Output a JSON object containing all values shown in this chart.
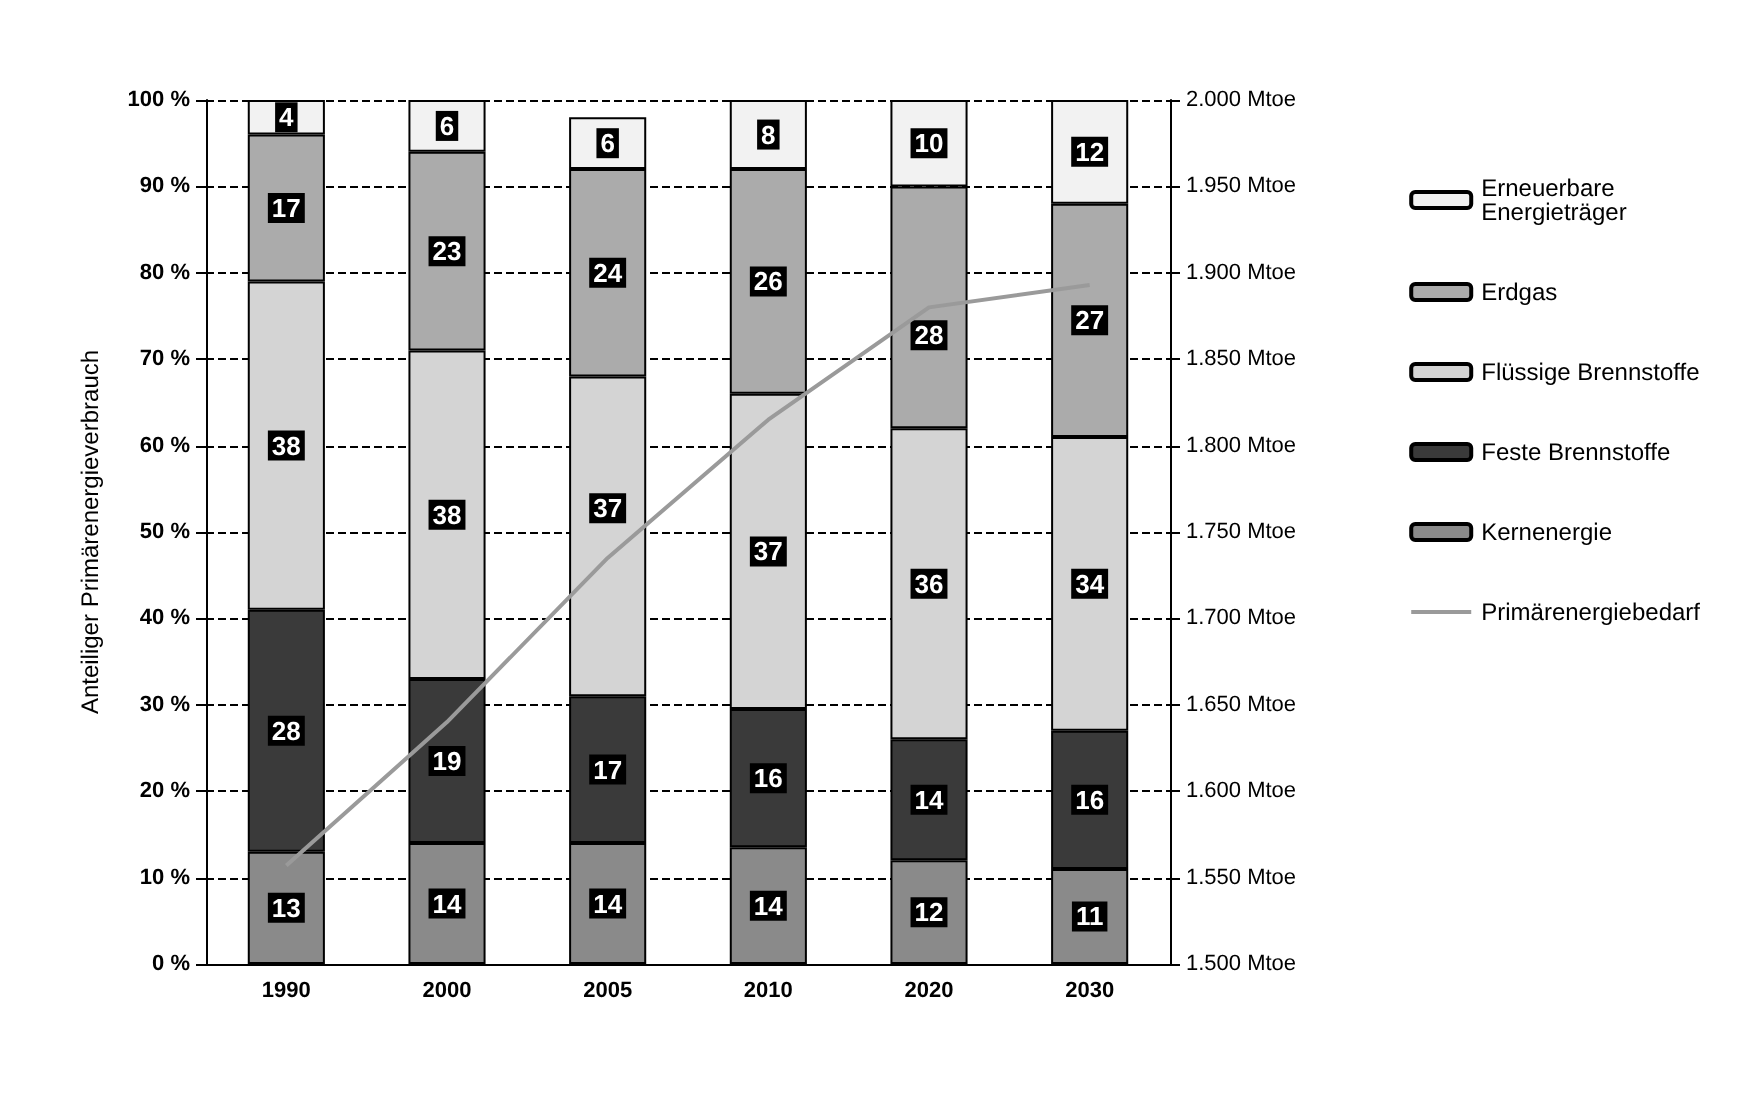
{
  "chart_data": {
    "type": "bar",
    "stacked": true,
    "ylabel": "Anteiliger Primärenergieverbrauch",
    "categories": [
      "1990",
      "2000",
      "2005",
      "2010",
      "2020",
      "2030"
    ],
    "series": [
      {
        "name": "Kernenergie",
        "color": "#8a8a8a",
        "values": [
          13,
          14,
          14,
          13.5,
          12,
          11
        ],
        "value_labels": [
          "13",
          "14",
          "14",
          "14",
          "12",
          "11"
        ]
      },
      {
        "name": "Feste Brennstoffe",
        "color": "#3a3a3a",
        "values": [
          28,
          19,
          17,
          16,
          14,
          16
        ],
        "value_labels": [
          "28",
          "19",
          "17",
          "16",
          "14",
          "16"
        ]
      },
      {
        "name": "Flüssige Brennstoffe",
        "color": "#d4d4d4",
        "values": [
          38,
          38,
          37,
          36.5,
          36,
          34
        ],
        "value_labels": [
          "38",
          "38",
          "37",
          "37",
          "36",
          "34"
        ]
      },
      {
        "name": "Erdgas",
        "color": "#ababab",
        "values": [
          17,
          23,
          24,
          26,
          28,
          27
        ],
        "value_labels": [
          "17",
          "23",
          "24",
          "26",
          "28",
          "27"
        ]
      },
      {
        "name": "Erneuerbare Energieträger",
        "color": "#f2f2f2",
        "values": [
          4,
          6,
          6,
          8,
          10,
          12
        ],
        "value_labels": [
          "4",
          "6",
          "6",
          "8",
          "10",
          "12"
        ]
      },
      {
        "name": "Primärenergiebedarf",
        "type": "line",
        "axis": "y2",
        "color": "#9a9a9a",
        "values": [
          1557,
          1640,
          1735,
          1815,
          1880,
          1893
        ]
      }
    ],
    "ylim": [
      0,
      100
    ],
    "yticks": [
      {
        "value": 0,
        "label": "0 %"
      },
      {
        "value": 10,
        "label": "10 %"
      },
      {
        "value": 20,
        "label": "20 %"
      },
      {
        "value": 30,
        "label": "30 %"
      },
      {
        "value": 40,
        "label": "40 %"
      },
      {
        "value": 50,
        "label": "50 %"
      },
      {
        "value": 60,
        "label": "60 %"
      },
      {
        "value": 70,
        "label": "70 %"
      },
      {
        "value": 80,
        "label": "80 %"
      },
      {
        "value": 90,
        "label": "90 %"
      },
      {
        "value": 100,
        "label": "100 %"
      }
    ],
    "y2lim": [
      1500,
      2000
    ],
    "y2ticks": [
      {
        "value": 1500,
        "label": "1.500 Mtoe"
      },
      {
        "value": 1550,
        "label": "1.550 Mtoe"
      },
      {
        "value": 1600,
        "label": "1.600 Mtoe"
      },
      {
        "value": 1650,
        "label": "1.650 Mtoe"
      },
      {
        "value": 1700,
        "label": "1.700 Mtoe"
      },
      {
        "value": 1750,
        "label": "1.750 Mtoe"
      },
      {
        "value": 1800,
        "label": "1.800 Mtoe"
      },
      {
        "value": 1850,
        "label": "1.850 Mtoe"
      },
      {
        "value": 1900,
        "label": "1.900 Mtoe"
      },
      {
        "value": 1950,
        "label": "1.950 Mtoe"
      },
      {
        "value": 2000,
        "label": "2.000 Mtoe"
      }
    ],
    "grid": "y",
    "legend": "right",
    "marker": "none"
  }
}
